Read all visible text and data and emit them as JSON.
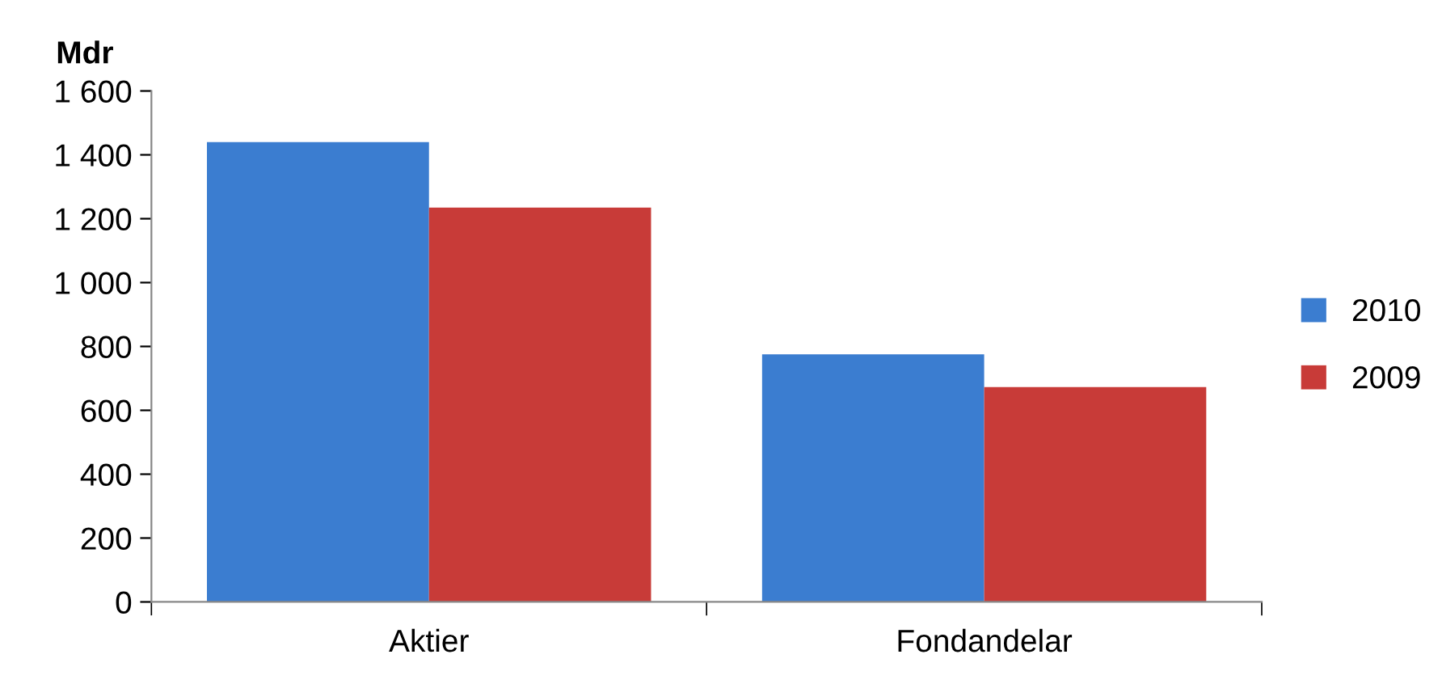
{
  "chart_data": {
    "type": "bar",
    "ylabel": "Mdr",
    "categories": [
      "Aktier",
      "Fondandelar"
    ],
    "series": [
      {
        "name": "2010",
        "color": "#3b7dd0",
        "values": [
          1440,
          775
        ]
      },
      {
        "name": "2009",
        "color": "#c83b38",
        "values": [
          1235,
          673
        ]
      }
    ],
    "ylim": [
      0,
      1600
    ],
    "yticks": [
      0,
      200,
      400,
      600,
      800,
      {
        "value": 1000,
        "label": "1 000"
      },
      {
        "value": 1200,
        "label": "1 200"
      },
      {
        "value": 1400,
        "label": "1 400"
      },
      {
        "value": 1600,
        "label": "1 600"
      }
    ],
    "grid": false,
    "legend": "right"
  }
}
